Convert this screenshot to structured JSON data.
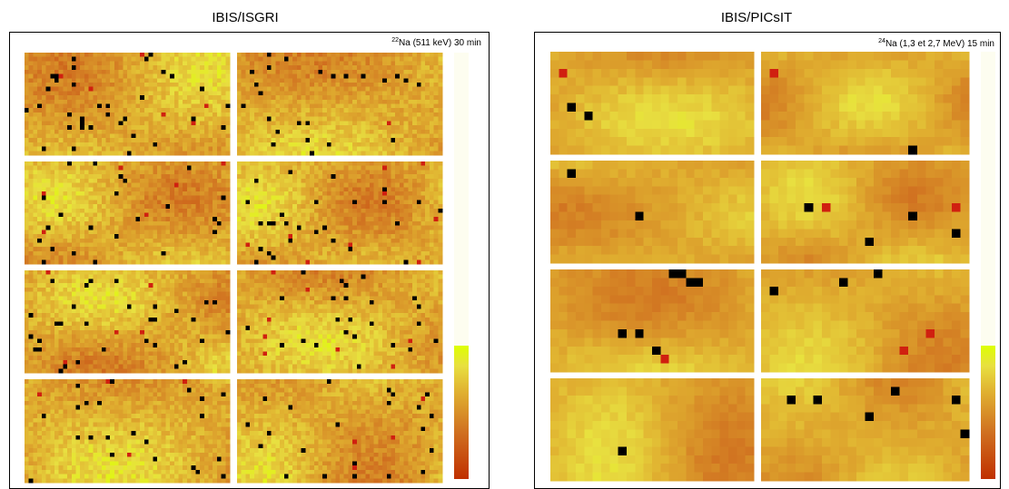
{
  "panels": [
    {
      "title": "IBIS/ISGRI",
      "annotation": {
        "mass_number": "22",
        "text": "Na (511 keV) 30 min"
      }
    },
    {
      "title": "IBIS/PICsIT",
      "annotation": {
        "mass_number": "24",
        "text": "Na (1,3 et 2,7 MeV) 15 min"
      }
    }
  ]
}
